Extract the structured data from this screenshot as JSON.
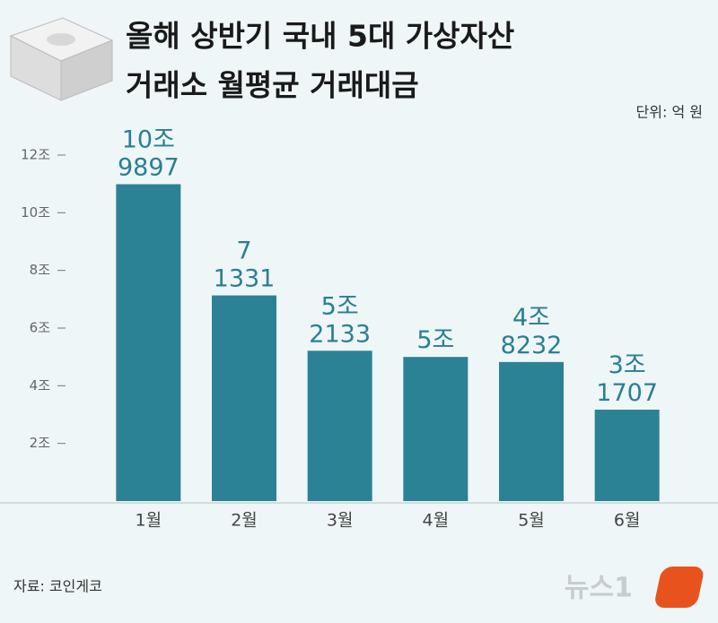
{
  "chart_data": {
    "type": "bar",
    "title_lines": [
      "올해 상반기 국내 5대 가상자산",
      "거래소 월평균 거래대금"
    ],
    "unit": "단위: 억 원",
    "source": "자료: 코인게코",
    "logo": "뉴스1",
    "categories": [
      "1월",
      "2월",
      "3월",
      "4월",
      "5월",
      "6월"
    ],
    "values": [
      109897,
      71331,
      52133,
      50000,
      48232,
      31707
    ],
    "value_labels": [
      "10조 9897",
      "7 1331",
      "5조 2133",
      "5조",
      "4조 8232",
      "3조 1707"
    ],
    "color": "#2b8295",
    "ylim": [
      0,
      120000
    ],
    "yticks": [
      {
        "value": 20000,
        "label": "2조"
      },
      {
        "value": 40000,
        "label": "4조"
      },
      {
        "value": 60000,
        "label": "6조"
      },
      {
        "value": 80000,
        "label": "8조"
      },
      {
        "value": 100000,
        "label": "10조"
      },
      {
        "value": 120000,
        "label": "12조"
      }
    ]
  }
}
